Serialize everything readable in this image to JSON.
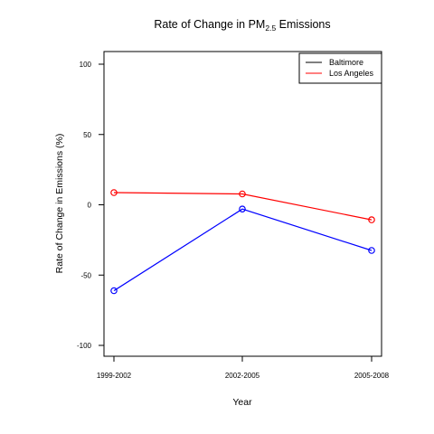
{
  "chart_data": {
    "type": "line",
    "title": "Rate of Change in PM",
    "title_subscript": "2.5",
    "title_suffix": " Emissions",
    "xlabel": "Year",
    "ylabel": "Rate of Change in Emissions (%)",
    "categories": [
      "1999-2002",
      "2002-2005",
      "2005-2008"
    ],
    "ylim": [
      -100,
      100
    ],
    "yticks": [
      100,
      50,
      0,
      -50,
      -100
    ],
    "grid": false,
    "legend_position": "top-right",
    "legend": [
      {
        "label": "Baltimore",
        "color": "#000000"
      },
      {
        "label": "Los Angeles",
        "color": "#ff0000"
      }
    ],
    "series": [
      {
        "color": "#0000ff",
        "values": [
          -61.1,
          -3.0,
          -32.5
        ]
      },
      {
        "color": "#ff0000",
        "values": [
          8.7,
          7.7,
          -10.7
        ]
      }
    ]
  }
}
